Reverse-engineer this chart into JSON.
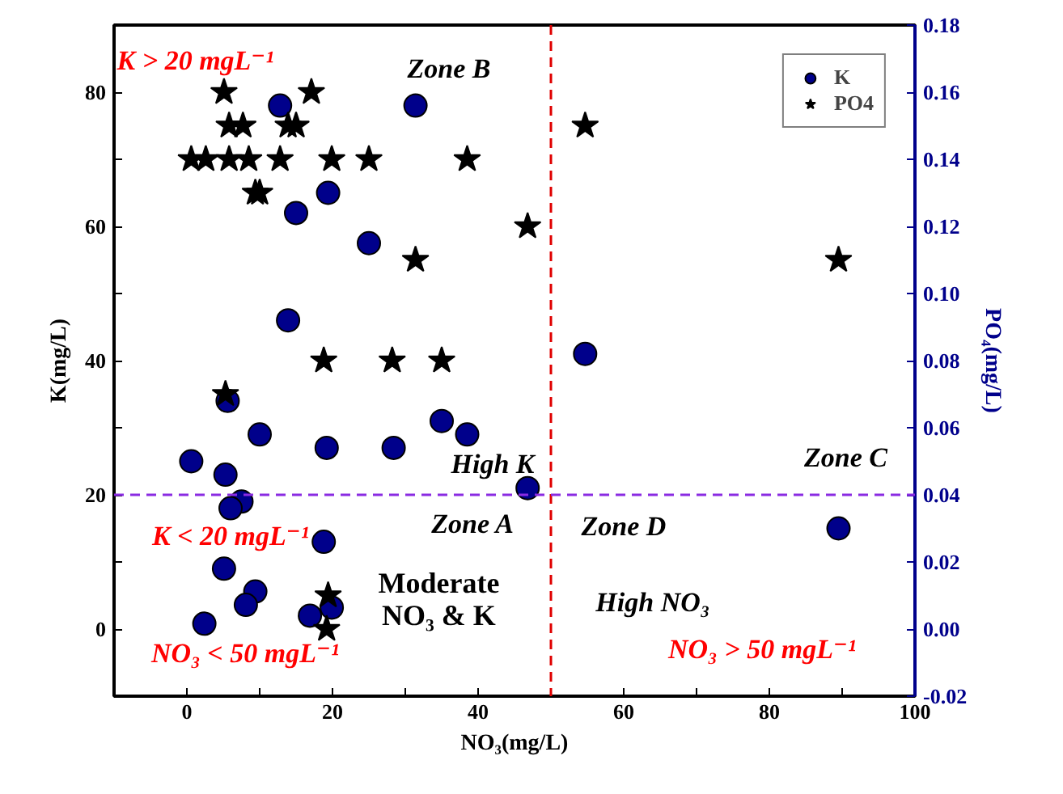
{
  "chart_data": {
    "type": "scatter",
    "xlabel": "NO₃(mg/L)",
    "ylabel": "K(mg/L)",
    "y2label": "PO₄(mg/L)",
    "xlim": [
      -10,
      100
    ],
    "ylim": [
      -10,
      90
    ],
    "y2lim": [
      -0.02,
      0.18
    ],
    "xticks": [
      0,
      {
        "value": 10,
        "label": null
      },
      20,
      {
        "value": 30,
        "label": null
      },
      40,
      {
        "value": 50,
        "label": null
      },
      60,
      {
        "value": 70,
        "label": null
      },
      80,
      {
        "value": 90,
        "label": null
      },
      100
    ],
    "yticks": [
      {
        "value": -10,
        "label": null
      },
      0,
      {
        "value": 10,
        "label": null
      },
      20,
      {
        "value": 30,
        "label": null
      },
      40,
      {
        "value": 50,
        "label": null
      },
      60,
      {
        "value": 70,
        "label": null
      },
      80
    ],
    "y2ticks": [
      {
        "value": -0.02,
        "label": "-0.02"
      },
      {
        "value": 0,
        "label": "0.00"
      },
      {
        "value": 0.02,
        "label": "0.02"
      },
      {
        "value": 0.04,
        "label": "0.04"
      },
      {
        "value": 0.06,
        "label": "0.06"
      },
      {
        "value": 0.08,
        "label": "0.08"
      },
      {
        "value": 0.1,
        "label": "0.10"
      },
      {
        "value": 0.12,
        "label": "0.12"
      },
      {
        "value": 0.14,
        "label": "0.14"
      },
      {
        "value": 0.16,
        "label": "0.16"
      },
      {
        "value": 0.18,
        "label": "0.18"
      }
    ],
    "series": [
      {
        "name": "K",
        "color": "#00008b",
        "marker": "circle",
        "x": [
          12.8,
          31.4,
          19.4,
          15,
          25,
          13.9,
          5.6,
          10,
          19.2,
          35,
          38.5,
          28.4,
          0.6,
          5.3,
          46.8,
          7.5,
          6,
          18.8,
          5.1,
          9.4,
          8.1,
          19.9,
          16.9,
          2.4,
          54.7,
          89.5
        ],
        "values": [
          78,
          78,
          65,
          62,
          57.5,
          46,
          34,
          29,
          27,
          31,
          29,
          27,
          25,
          23,
          21,
          19,
          18,
          13,
          9,
          5.6,
          3.6,
          3.2,
          2,
          0.8,
          41,
          15
        ]
      },
      {
        "name": "PO4",
        "color": "#000000",
        "marker": "star",
        "axis": "y2",
        "x": [
          5.1,
          17.1,
          5.8,
          7.7,
          13.9,
          15,
          0.6,
          2.6,
          5.8,
          8.5,
          12.8,
          19.9,
          25,
          38.5,
          9.4,
          10,
          46.8,
          31.4,
          18.8,
          28.2,
          35,
          5.3,
          19.4,
          19.2,
          54.7,
          89.5
        ],
        "values": [
          0.16,
          0.16,
          0.15,
          0.15,
          0.15,
          0.15,
          0.14,
          0.14,
          0.14,
          0.14,
          0.14,
          0.14,
          0.14,
          0.14,
          0.13,
          0.13,
          0.12,
          0.11,
          0.08,
          0.08,
          0.08,
          0.07,
          0.01,
          0.0,
          0.15,
          0.11
        ]
      }
    ],
    "ref_lines": [
      {
        "axis": "x",
        "value": 50,
        "color": "#e00000",
        "line_style": "dashed"
      },
      {
        "axis": "y",
        "value": 20,
        "color": "#8a2be2",
        "line_style": "dashed"
      }
    ],
    "annotations": [
      "K > 20 mgL⁻¹",
      "Zone B",
      "High K",
      "Zone A",
      "K < 20 mgL⁻¹",
      "Moderate\nNO₃ & K",
      "NO₃ < 50 mgL⁻¹",
      "Zone D",
      "High NO₃",
      "NO₃ > 50 mgL⁻¹",
      "Zone C"
    ],
    "legend": "top right",
    "grid": false
  }
}
